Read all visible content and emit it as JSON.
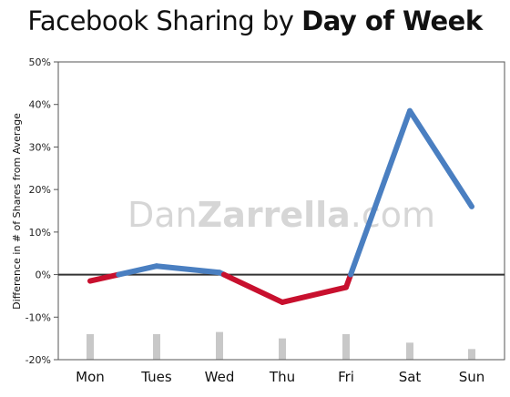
{
  "title": {
    "light": "Facebook Sharing by",
    "bold": "Day of Week"
  },
  "watermark": {
    "part1": "Dan",
    "part2": "Zarrella",
    "part3": ".com"
  },
  "colors": {
    "positive": "#4a7fc1",
    "negative": "#c8102e",
    "bars": "#c8c8c8",
    "zero_line": "#333333"
  },
  "chart_data": {
    "type": "line",
    "categories": [
      "Mon",
      "Tues",
      "Wed",
      "Thu",
      "Fri",
      "Sat",
      "Sun"
    ],
    "values": [
      -1.5,
      2,
      0.5,
      -6.5,
      -3,
      38.5,
      16
    ],
    "bars": [
      -14,
      -14,
      -13.5,
      -15,
      -14,
      -16,
      -17.5
    ],
    "ylabel": "Difference in # of Shares from Average",
    "ylim": [
      -20,
      50
    ],
    "yticks": [
      -20,
      -10,
      0,
      10,
      20,
      30,
      40,
      50
    ],
    "ytick_labels": [
      "-20%",
      "-10%",
      "0%",
      "10%",
      "20%",
      "30%",
      "40%",
      "50%"
    ],
    "grid": false
  }
}
